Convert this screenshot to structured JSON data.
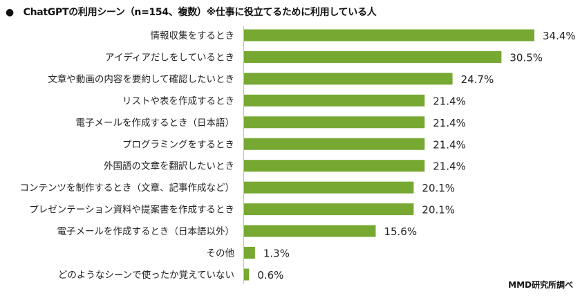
{
  "chart_data": {
    "type": "bar",
    "orientation": "horizontal",
    "title": "●　ChatGPTの利用シーン（n=154、複数）※仕事に役立てるために利用している人",
    "source": "MMD研究所調べ",
    "categories": [
      "情報収集をするとき",
      "アイディアだしをしているとき",
      "文章や動画の内容を要約して確認したいとき",
      "リストや表を作成するとき",
      "電子メールを作成するとき（日本語）",
      "プログラミングをするとき",
      "外国語の文章を翻訳したいとき",
      "コンテンツを制作するとき（文章、記事作成など）",
      "プレゼンテーション資料や提案書を作成するとき",
      "電子メールを作成するとき（日本語以外）",
      "その他",
      "どのようなシーンで使ったか覚えていない"
    ],
    "values": [
      34.4,
      30.5,
      24.7,
      21.4,
      21.4,
      21.4,
      21.4,
      20.1,
      20.1,
      15.6,
      1.3,
      0.6
    ],
    "value_labels": [
      "34.4%",
      "30.5%",
      "24.7%",
      "21.4%",
      "21.4%",
      "21.4%",
      "21.4%",
      "20.1%",
      "20.1%",
      "15.6%",
      "1.3%",
      "0.6%"
    ],
    "unit": "%",
    "xlim": [
      0,
      34.4
    ],
    "grid": false,
    "bar_color": "#76a832"
  }
}
